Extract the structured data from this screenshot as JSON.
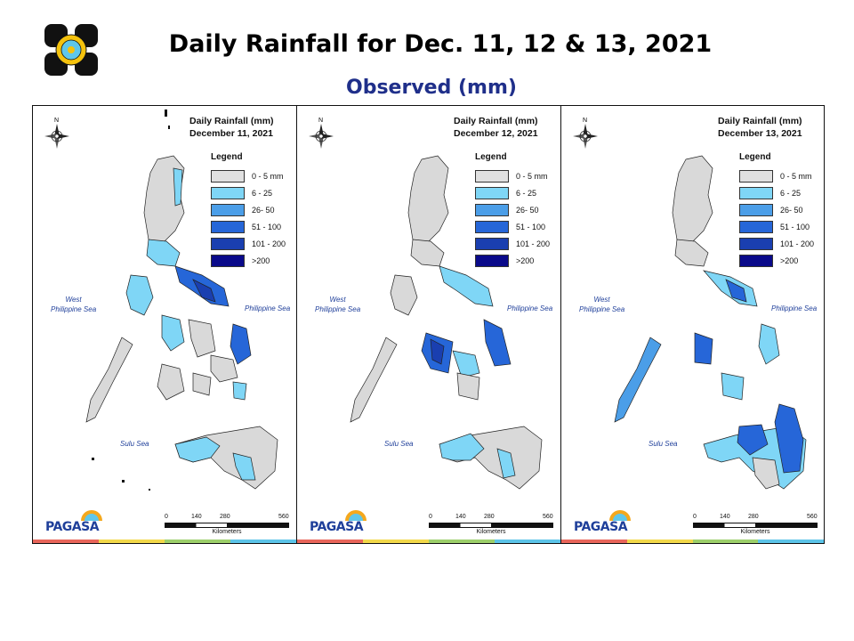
{
  "header": {
    "title": "Daily Rainfall for Dec. 11, 12 & 13, 2021",
    "subtitle": "Observed (mm)"
  },
  "legend": {
    "heading": "Legend",
    "items": [
      {
        "label": "0 - 5 mm",
        "color": "#e0e0e0"
      },
      {
        "label": "6 - 25",
        "color": "#7fd6f6"
      },
      {
        "label": "26- 50",
        "color": "#4b9ee8"
      },
      {
        "label": "51 - 100",
        "color": "#2666d8"
      },
      {
        "label": "101 - 200",
        "color": "#1a3fb0"
      },
      {
        "label": ">200",
        "color": "#0a0a8a"
      }
    ],
    "items_panel3": [
      {
        "label": "0 - 5 mm"
      },
      {
        "label": "6 - 25"
      },
      {
        "label": "26- 50"
      },
      {
        "label": "51 - 100"
      },
      {
        "label": "101 - 200"
      },
      {
        "label": ">200"
      }
    ]
  },
  "panels": [
    {
      "heading": "Daily Rainfall (mm)",
      "date": "December 11, 2021"
    },
    {
      "heading": "Daily Rainfall (mm)",
      "date": "December 12, 2021"
    },
    {
      "heading": "Daily Rainfall (mm)",
      "date": "December 13, 2021"
    }
  ],
  "seas": {
    "west": "West\nPhilippine Sea",
    "east": "Philippine Sea",
    "sulu": "Sulu Sea"
  },
  "scale": {
    "ticks": [
      "0",
      "140",
      "280",
      "560"
    ],
    "unit": "Kilometers"
  },
  "branding": {
    "agency": "PAGASA"
  },
  "colors": {
    "land": "#d9d9d9",
    "light": "#7fd6f6",
    "mid": "#4b9ee8",
    "heavy": "#2666d8",
    "very_heavy": "#1a3fb0",
    "title_blue": "#1f2f8a"
  }
}
